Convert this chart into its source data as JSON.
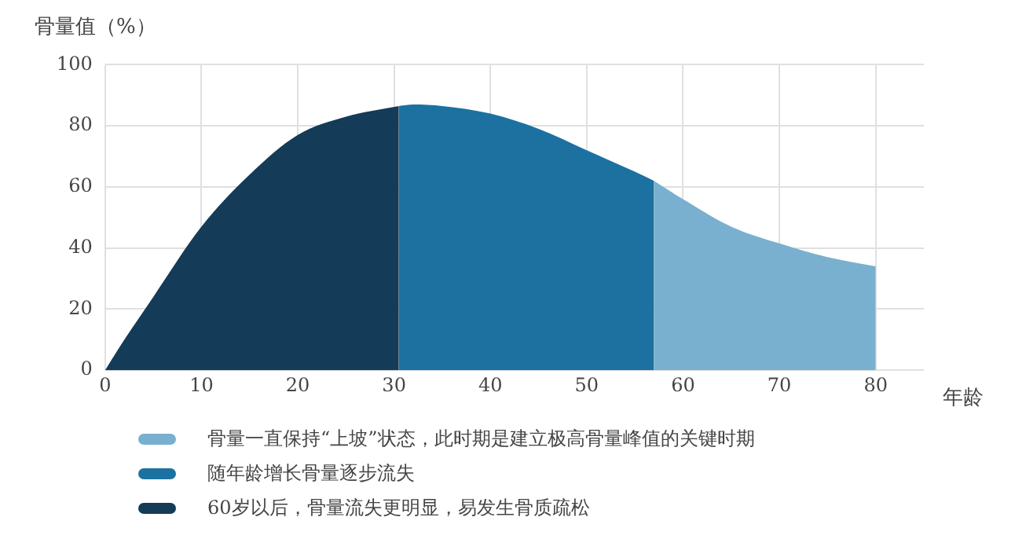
{
  "chart_data": {
    "type": "area",
    "ylabel": "骨量值（%）",
    "xlabel": "年龄",
    "series": [
      {
        "name": "骨量一直保持“上坡”状态，此时期是建立极高骨量峰值的关键时期",
        "color": "#7ab0cf",
        "x": [
          57,
          60,
          65,
          70,
          75,
          80
        ],
        "values": [
          62,
          56,
          47,
          41.5,
          37,
          34
        ]
      },
      {
        "name": "随年龄增长骨量逐步流失",
        "color": "#1c71a0",
        "x": [
          30.5,
          32,
          35,
          40,
          45,
          50,
          55,
          57
        ],
        "values": [
          86.5,
          87,
          86.5,
          84,
          79,
          72,
          65,
          62
        ]
      },
      {
        "name": "60岁以后，骨量流失更明显，易发生骨质疏松",
        "color": "#143b58",
        "x": [
          0,
          2,
          5,
          10,
          15,
          20,
          25,
          30.5
        ],
        "values": [
          0,
          10,
          24,
          47,
          64,
          77,
          83,
          86.5
        ]
      }
    ],
    "xlim": [
      0,
      85
    ],
    "xticks": [
      0,
      10,
      20,
      30,
      40,
      50,
      60,
      70,
      80
    ],
    "ylim": [
      0,
      100
    ],
    "yticks": [
      0,
      20,
      40,
      60,
      80,
      100
    ],
    "grid": true,
    "legend": "bottom"
  }
}
